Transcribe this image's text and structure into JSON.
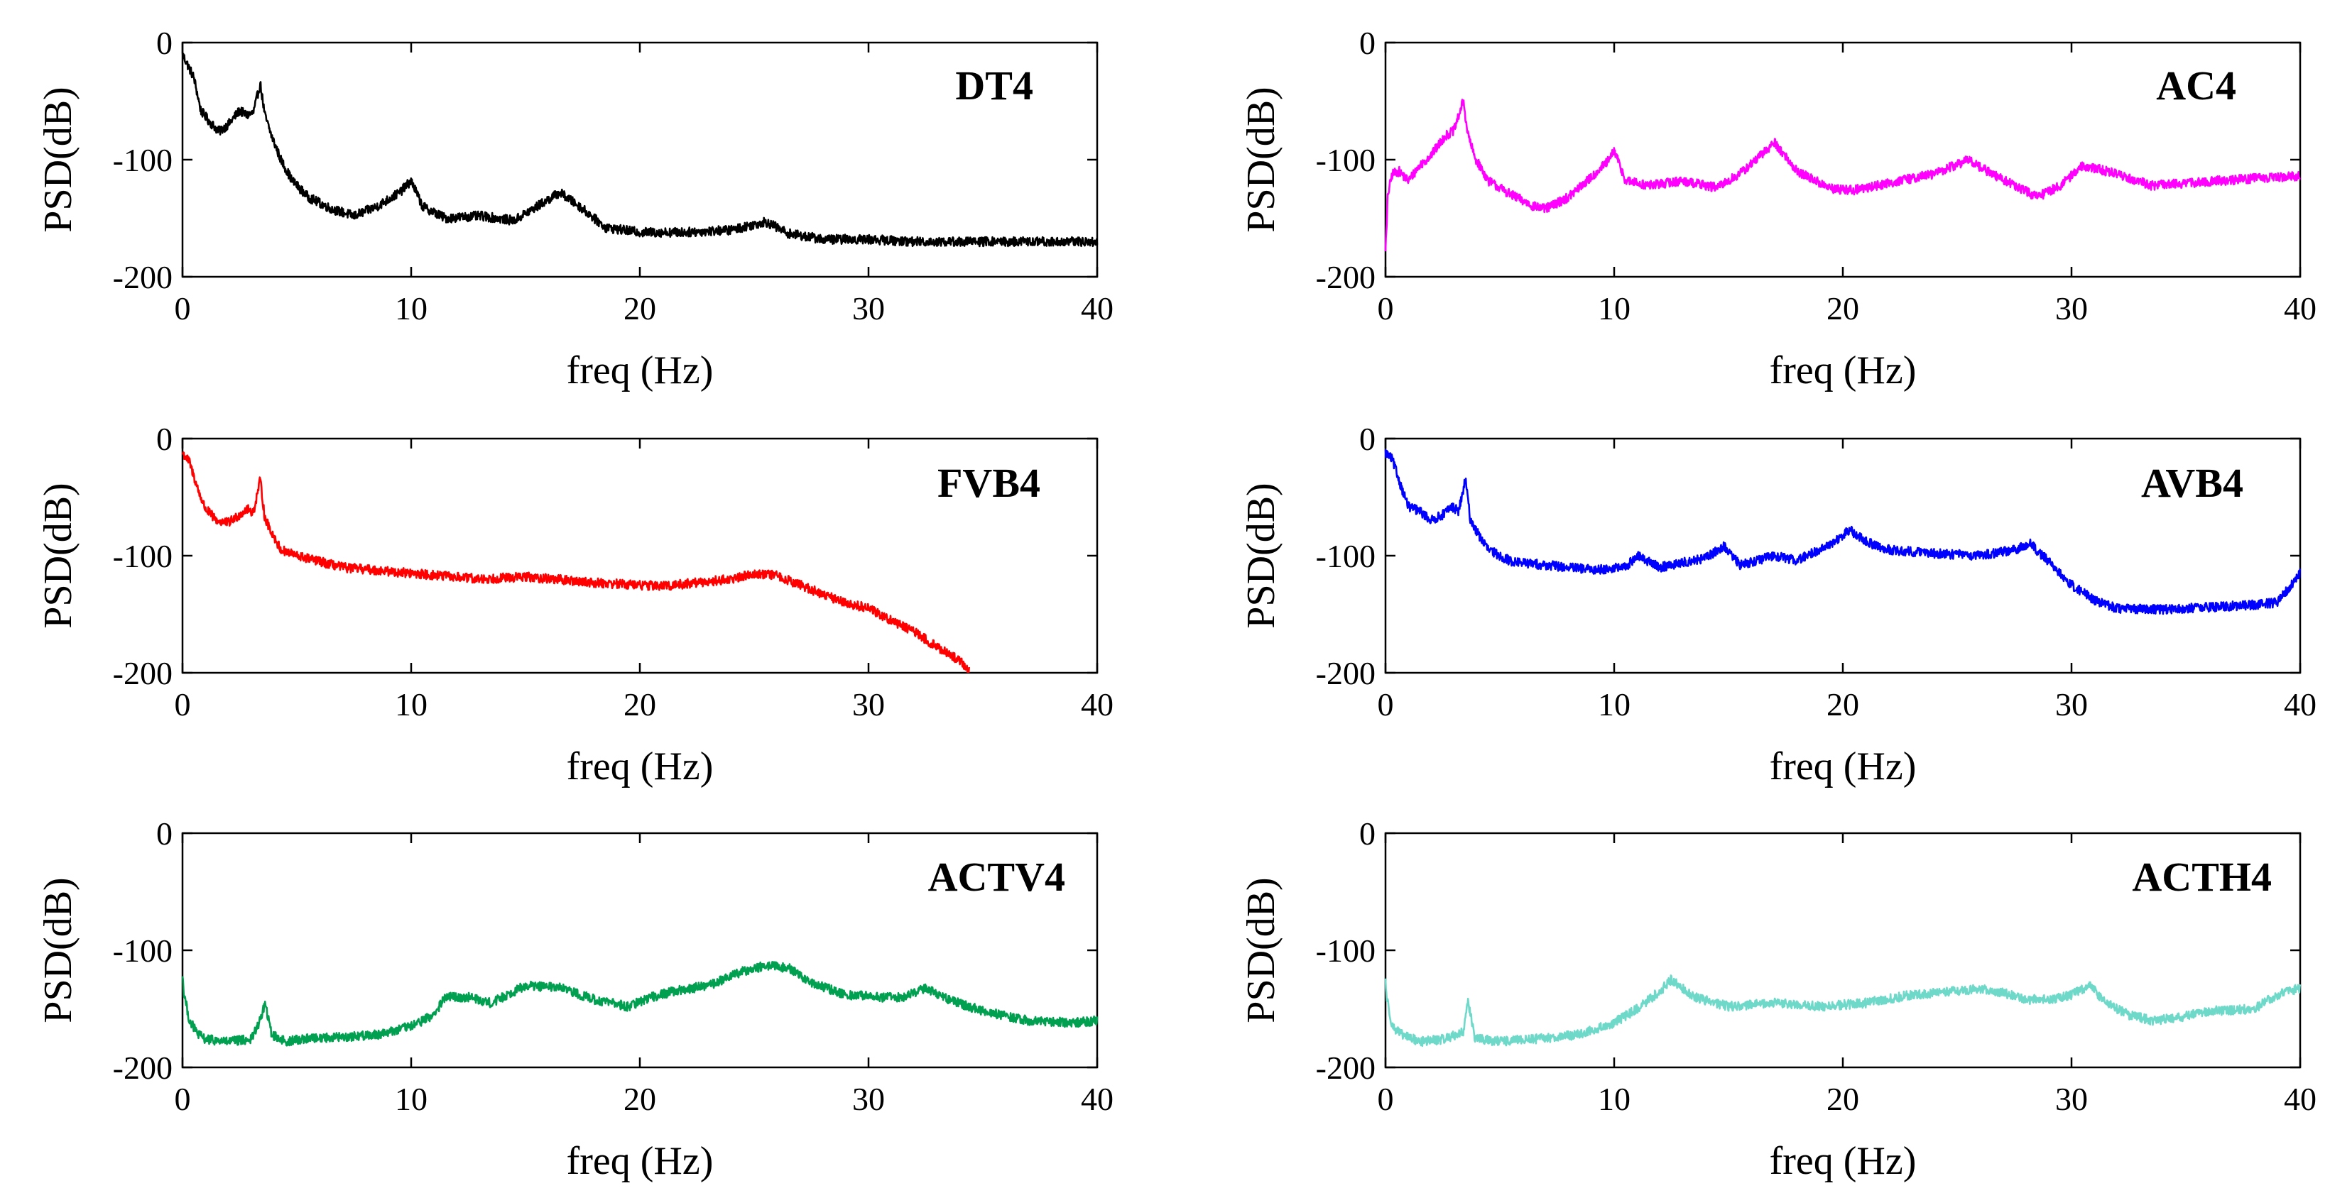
{
  "chart_data": [
    {
      "type": "line",
      "title": "DT4",
      "color": "#000000",
      "xlabel": "freq (Hz)",
      "ylabel": "PSD(dB)",
      "xlim": [
        0,
        40
      ],
      "ylim": [
        -200,
        0
      ],
      "xticks": [
        "0",
        "10",
        "20",
        "30",
        "40"
      ],
      "yticks": [
        "0",
        "-100",
        "-200"
      ],
      "noise_db": 4,
      "x": [
        0,
        0.2,
        0.5,
        0.8,
        1.2,
        1.6,
        2.0,
        2.5,
        2.8,
        3.1,
        3.4,
        3.6,
        3.9,
        4.3,
        4.8,
        5.5,
        6.5,
        7.5,
        8.5,
        9.5,
        10.0,
        10.5,
        11.5,
        13,
        14.5,
        15.5,
        16.5,
        17.5,
        18.5,
        20,
        22,
        24,
        25.5,
        26.5,
        28,
        30,
        32,
        35,
        38,
        40
      ],
      "y": [
        -10,
        -18,
        -30,
        -58,
        -68,
        -76,
        -70,
        -58,
        -62,
        -60,
        -35,
        -62,
        -80,
        -100,
        -118,
        -132,
        -142,
        -148,
        -140,
        -128,
        -118,
        -140,
        -150,
        -148,
        -152,
        -140,
        -128,
        -142,
        -158,
        -162,
        -162,
        -160,
        -153,
        -163,
        -168,
        -168,
        -170,
        -170,
        -170,
        -170
      ]
    },
    {
      "type": "line",
      "title": "AC4",
      "color": "#ff00ff",
      "xlabel": "freq (Hz)",
      "ylabel": "PSD(dB)",
      "xlim": [
        0,
        40
      ],
      "ylim": [
        -200,
        0
      ],
      "xticks": [
        "0",
        "10",
        "20",
        "30",
        "40"
      ],
      "yticks": [
        "0",
        "-100",
        "-200"
      ],
      "noise_db": 4,
      "x": [
        0,
        0.05,
        0.1,
        0.3,
        0.6,
        1.0,
        1.5,
        2.0,
        2.6,
        3.0,
        3.4,
        3.6,
        3.9,
        4.5,
        5.5,
        6.5,
        7.0,
        8.0,
        9.0,
        9.8,
        10.0,
        10.5,
        11.5,
        13,
        14.5,
        15.5,
        16.5,
        17.0,
        18,
        19.5,
        20.5,
        22,
        24,
        25.5,
        26.5,
        27.5,
        28.5,
        29.5,
        30.5,
        32,
        33.5,
        35,
        36.5,
        38,
        40
      ],
      "y": [
        -175,
        -160,
        -130,
        -112,
        -110,
        -118,
        -105,
        -96,
        -80,
        -75,
        -50,
        -78,
        -98,
        -118,
        -130,
        -140,
        -142,
        -132,
        -115,
        -100,
        -92,
        -118,
        -122,
        -118,
        -124,
        -112,
        -95,
        -85,
        -110,
        -125,
        -126,
        -120,
        -112,
        -100,
        -112,
        -122,
        -132,
        -122,
        -105,
        -112,
        -122,
        -120,
        -118,
        -116,
        -114
      ]
    },
    {
      "type": "line",
      "title": "FVB4",
      "color": "#ff0000",
      "xlabel": "freq (Hz)",
      "ylabel": "PSD(dB)",
      "xlim": [
        0,
        40
      ],
      "ylim": [
        -200,
        0
      ],
      "xticks": [
        "0",
        "10",
        "20",
        "30",
        "40"
      ],
      "yticks": [
        "0",
        "-100",
        "-200"
      ],
      "noise_db": 4,
      "x": [
        0,
        0.3,
        0.7,
        1.0,
        1.5,
        2.0,
        2.5,
        2.8,
        3.1,
        3.4,
        3.6,
        3.9,
        4.3,
        5.0,
        7,
        10,
        13,
        15,
        18,
        21,
        22,
        24,
        25,
        26,
        27,
        28,
        29,
        30,
        31,
        32,
        33,
        34,
        34.4
      ],
      "y": [
        -12,
        -20,
        -45,
        -60,
        -70,
        -72,
        -65,
        -60,
        -63,
        -35,
        -68,
        -80,
        -95,
        -100,
        -110,
        -115,
        -120,
        -118,
        -123,
        -126,
        -124,
        -120,
        -115,
        -117,
        -125,
        -133,
        -140,
        -145,
        -155,
        -165,
        -178,
        -190,
        -198
      ]
    },
    {
      "type": "line",
      "title": "AVB4",
      "color": "#0000ff",
      "xlabel": "freq (Hz)",
      "ylabel": "PSD(dB)",
      "xlim": [
        0,
        40
      ],
      "ylim": [
        -200,
        0
      ],
      "xticks": [
        "0",
        "10",
        "20",
        "30",
        "40"
      ],
      "yticks": [
        "0",
        "-100",
        "-200"
      ],
      "noise_db": 4,
      "x": [
        0,
        0.3,
        0.7,
        1.0,
        1.5,
        2.0,
        2.5,
        2.9,
        3.2,
        3.5,
        3.7,
        4.0,
        4.5,
        5.5,
        7,
        9,
        10.5,
        11.0,
        12,
        14,
        14.8,
        15.5,
        17,
        18,
        19.5,
        20.3,
        21,
        22,
        24,
        26,
        27.5,
        28.2,
        29,
        30,
        31,
        32,
        34,
        36,
        38,
        39,
        39.5,
        40
      ],
      "y": [
        -12,
        -18,
        -42,
        -58,
        -62,
        -70,
        -65,
        -58,
        -62,
        -35,
        -68,
        -80,
        -95,
        -105,
        -108,
        -112,
        -110,
        -100,
        -110,
        -102,
        -92,
        -108,
        -100,
        -104,
        -90,
        -78,
        -88,
        -95,
        -98,
        -100,
        -95,
        -90,
        -105,
        -125,
        -138,
        -145,
        -146,
        -144,
        -142,
        -140,
        -128,
        -115
      ]
    },
    {
      "type": "line",
      "title": "ACTV4",
      "color": "#00a050",
      "xlabel": "freq (Hz)",
      "ylabel": "PSD(dB)",
      "xlim": [
        0,
        40
      ],
      "ylim": [
        -200,
        0
      ],
      "xticks": [
        "0",
        "10",
        "20",
        "30",
        "40"
      ],
      "yticks": [
        "0",
        "-100",
        "-200"
      ],
      "noise_db": 4,
      "x": [
        0,
        0.05,
        0.3,
        0.7,
        1.0,
        2.0,
        3.0,
        3.4,
        3.6,
        3.9,
        4.5,
        5.5,
        7,
        8.5,
        10,
        11,
        11.5,
        12.5,
        13.5,
        15,
        16.5,
        18,
        19.5,
        20.5,
        21.5,
        23,
        24.5,
        25.5,
        26.5,
        27.5,
        29,
        30.5,
        31.5,
        32.5,
        33.5,
        35,
        37,
        39,
        40
      ],
      "y": [
        -120,
        -135,
        -160,
        -172,
        -176,
        -178,
        -176,
        -160,
        -145,
        -172,
        -178,
        -175,
        -174,
        -172,
        -165,
        -155,
        -140,
        -140,
        -145,
        -130,
        -132,
        -142,
        -148,
        -140,
        -135,
        -130,
        -118,
        -113,
        -115,
        -128,
        -138,
        -140,
        -140,
        -132,
        -142,
        -152,
        -160,
        -162,
        -160
      ]
    },
    {
      "type": "line",
      "title": "ACTH4",
      "color": "#6fd9c9",
      "xlabel": "freq (Hz)",
      "ylabel": "PSD(dB)",
      "xlim": [
        0,
        40
      ],
      "ylim": [
        -200,
        0
      ],
      "xticks": [
        "0",
        "10",
        "20",
        "30",
        "40"
      ],
      "yticks": [
        "0",
        "-100",
        "-200"
      ],
      "noise_db": 4,
      "x": [
        0,
        0.05,
        0.3,
        0.7,
        1.5,
        2.5,
        3.4,
        3.6,
        3.9,
        5,
        7,
        8.5,
        10,
        11,
        12.0,
        12.5,
        13.5,
        15,
        17,
        19,
        21,
        23,
        25,
        26,
        27,
        28,
        29,
        30,
        30.8,
        31.5,
        32.5,
        33.5,
        34.5,
        36,
        38,
        39,
        40
      ],
      "y": [
        -125,
        -140,
        -165,
        -172,
        -178,
        -176,
        -170,
        -142,
        -175,
        -178,
        -175,
        -172,
        -162,
        -150,
        -135,
        -125,
        -140,
        -148,
        -145,
        -148,
        -145,
        -138,
        -135,
        -133,
        -136,
        -142,
        -142,
        -138,
        -130,
        -145,
        -155,
        -160,
        -158,
        -152,
        -150,
        -138,
        -132
      ]
    }
  ]
}
